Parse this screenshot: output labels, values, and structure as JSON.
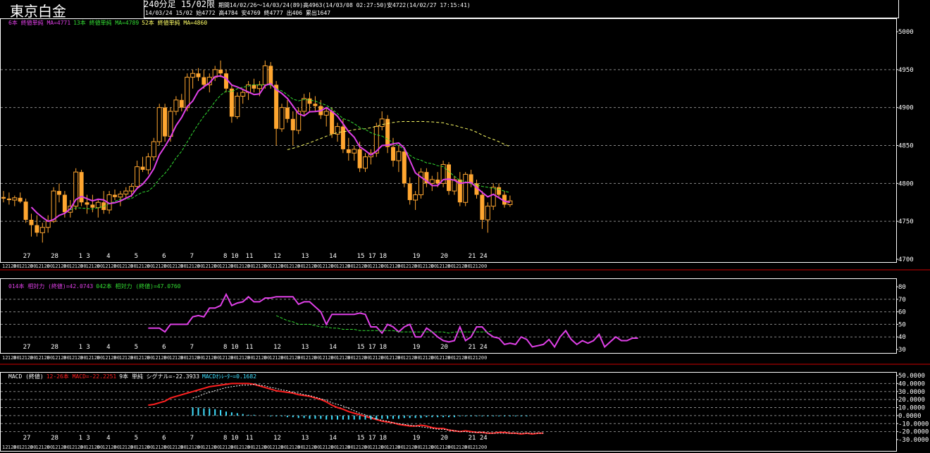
{
  "header": {
    "title": "東京白金",
    "period_label": "240分足 15/02限",
    "period_info": "期間14/02/26～14/03/24(89)高4963(14/03/08 02:27:50)安4722(14/02/27 17:15:41)",
    "latest_bar": "14/03/24 15/02 始4772 高4784 安4769 終4777 出406 累出1647"
  },
  "colors": {
    "background": "#000000",
    "candle_body": "#ffa630",
    "ma6": "#e040e8",
    "ma13": "#33dd33",
    "ma52": "#ffff66",
    "rsi14": "#e040e8",
    "rsi42": "#33dd33",
    "macd": "#ff2020",
    "signal": "#ffffff",
    "histogram": "#40e0ff",
    "separator": "#cc0000"
  },
  "chart_data": [
    {
      "type": "candlestick",
      "title": "240分足 15/02限",
      "legend": [
        {
          "label": "6本 終値単純 MA=4771",
          "color": "#e040e8"
        },
        {
          "label": "13本 終値単純 MA=4789",
          "color": "#33dd33"
        },
        {
          "label": "52本 終値単純 MA=4860",
          "color": "#ffff66"
        }
      ],
      "ylim": [
        4700,
        5000
      ],
      "yticks": [
        4700,
        4750,
        4800,
        4850,
        4900,
        4950,
        5000
      ],
      "grid": true,
      "xlabels": [
        {
          "i": 4,
          "t": "27"
        },
        {
          "i": 9,
          "t": "28"
        },
        {
          "i": 14,
          "t": "1 3"
        },
        {
          "i": 19,
          "t": "4"
        },
        {
          "i": 24,
          "t": "5"
        },
        {
          "i": 29,
          "t": "6"
        },
        {
          "i": 34,
          "t": "7"
        },
        {
          "i": 40,
          "t": "8 10"
        },
        {
          "i": 44,
          "t": "11"
        },
        {
          "i": 49,
          "t": "12"
        },
        {
          "i": 54,
          "t": "13"
        },
        {
          "i": 59,
          "t": "14"
        },
        {
          "i": 64,
          "t": "15 17"
        },
        {
          "i": 68,
          "t": "18"
        },
        {
          "i": 74,
          "t": "19"
        },
        {
          "i": 79,
          "t": "20"
        },
        {
          "i": 84,
          "t": "21 24"
        }
      ],
      "session_labels": [
        "12",
        "1200",
        "8",
        "12",
        "1200",
        "8",
        "12",
        "1200",
        "8",
        "12",
        "1200",
        "8",
        "12",
        "1200",
        "8",
        "12",
        "1200",
        "8",
        "12",
        "1200",
        "8",
        "12",
        "1200",
        "8",
        "12",
        "1200",
        "8",
        "12",
        "1200",
        "8",
        "12",
        "1200",
        "8",
        "12",
        "1200",
        "8",
        "12",
        "1200",
        "8",
        "12",
        "1200",
        "8",
        "12",
        "1200",
        "8",
        "12",
        "1200",
        "8",
        "12",
        "1200",
        "8",
        "12",
        "1200",
        "8",
        "12",
        "1200",
        "8",
        "12",
        "1200",
        "8",
        "12",
        "1200",
        "8",
        "12",
        "1200",
        "8",
        "12",
        "1200",
        "8",
        "12",
        "1200",
        "8",
        "12",
        "1200",
        "8",
        "12",
        "1200",
        "8",
        "12",
        "1200",
        "8",
        "12",
        "1200",
        "8",
        "12",
        "1200"
      ],
      "candles": [
        [
          4782,
          4790,
          4775,
          4780
        ],
        [
          4780,
          4788,
          4772,
          4778
        ],
        [
          4778,
          4784,
          4770,
          4781
        ],
        [
          4781,
          4788,
          4774,
          4776
        ],
        [
          4776,
          4780,
          4748,
          4752
        ],
        [
          4752,
          4760,
          4730,
          4745
        ],
        [
          4745,
          4758,
          4730,
          4735
        ],
        [
          4735,
          4748,
          4722,
          4742
        ],
        [
          4742,
          4758,
          4735,
          4750
        ],
        [
          4750,
          4795,
          4748,
          4790
        ],
        [
          4790,
          4800,
          4775,
          4785
        ],
        [
          4785,
          4790,
          4755,
          4762
        ],
        [
          4762,
          4778,
          4755,
          4770
        ],
        [
          4770,
          4820,
          4765,
          4815
        ],
        [
          4815,
          4818,
          4770,
          4775
        ],
        [
          4775,
          4785,
          4760,
          4772
        ],
        [
          4772,
          4785,
          4762,
          4768
        ],
        [
          4768,
          4778,
          4755,
          4775
        ],
        [
          4775,
          4790,
          4760,
          4765
        ],
        [
          4765,
          4790,
          4760,
          4785
        ],
        [
          4785,
          4792,
          4778,
          4782
        ],
        [
          4782,
          4790,
          4770,
          4786
        ],
        [
          4786,
          4795,
          4780,
          4790
        ],
        [
          4790,
          4800,
          4782,
          4796
        ],
        [
          4796,
          4830,
          4792,
          4822
        ],
        [
          4822,
          4835,
          4815,
          4818
        ],
        [
          4818,
          4840,
          4812,
          4835
        ],
        [
          4835,
          4860,
          4830,
          4855
        ],
        [
          4855,
          4905,
          4850,
          4900
        ],
        [
          4900,
          4905,
          4855,
          4862
        ],
        [
          4862,
          4900,
          4855,
          4895
        ],
        [
          4895,
          4915,
          4890,
          4910
        ],
        [
          4910,
          4918,
          4895,
          4900
        ],
        [
          4900,
          4945,
          4895,
          4940
        ],
        [
          4940,
          4950,
          4925,
          4945
        ],
        [
          4945,
          4952,
          4935,
          4940
        ],
        [
          4940,
          4950,
          4925,
          4930
        ],
        [
          4930,
          4945,
          4920,
          4940
        ],
        [
          4940,
          4955,
          4935,
          4950
        ],
        [
          4950,
          4962,
          4940,
          4945
        ],
        [
          4945,
          4950,
          4920,
          4925
        ],
        [
          4925,
          4930,
          4880,
          4888
        ],
        [
          4888,
          4920,
          4885,
          4915
        ],
        [
          4915,
          4925,
          4905,
          4920
        ],
        [
          4920,
          4935,
          4910,
          4930
        ],
        [
          4930,
          4938,
          4920,
          4925
        ],
        [
          4925,
          4935,
          4915,
          4930
        ],
        [
          4930,
          4962,
          4925,
          4955
        ],
        [
          4955,
          4960,
          4925,
          4930
        ],
        [
          4930,
          4935,
          4850,
          4872
        ],
        [
          4872,
          4905,
          4868,
          4900
        ],
        [
          4900,
          4910,
          4880,
          4885
        ],
        [
          4885,
          4895,
          4850,
          4870
        ],
        [
          4870,
          4900,
          4865,
          4895
        ],
        [
          4895,
          4918,
          4890,
          4912
        ],
        [
          4912,
          4920,
          4895,
          4905
        ],
        [
          4905,
          4915,
          4895,
          4902
        ],
        [
          4902,
          4910,
          4885,
          4890
        ],
        [
          4890,
          4900,
          4875,
          4895
        ],
        [
          4895,
          4900,
          4860,
          4865
        ],
        [
          4865,
          4880,
          4855,
          4875
        ],
        [
          4875,
          4885,
          4840,
          4845
        ],
        [
          4845,
          4860,
          4830,
          4840
        ],
        [
          4840,
          4850,
          4830,
          4845
        ],
        [
          4845,
          4855,
          4815,
          4820
        ],
        [
          4820,
          4840,
          4815,
          4835
        ],
        [
          4835,
          4845,
          4825,
          4840
        ],
        [
          4840,
          4880,
          4835,
          4875
        ],
        [
          4875,
          4895,
          4870,
          4885
        ],
        [
          4885,
          4890,
          4840,
          4848
        ],
        [
          4848,
          4860,
          4822,
          4830
        ],
        [
          4830,
          4850,
          4815,
          4842
        ],
        [
          4842,
          4848,
          4795,
          4800
        ],
        [
          4800,
          4808,
          4772,
          4778
        ],
        [
          4778,
          4790,
          4765,
          4785
        ],
        [
          4785,
          4820,
          4780,
          4815
        ],
        [
          4815,
          4820,
          4795,
          4800
        ],
        [
          4800,
          4810,
          4790,
          4805
        ],
        [
          4805,
          4815,
          4795,
          4800
        ],
        [
          4800,
          4830,
          4795,
          4825
        ],
        [
          4825,
          4828,
          4785,
          4790
        ],
        [
          4790,
          4810,
          4785,
          4805
        ],
        [
          4805,
          4815,
          4770,
          4775
        ],
        [
          4775,
          4815,
          4770,
          4812
        ],
        [
          4812,
          4818,
          4795,
          4800
        ],
        [
          4800,
          4805,
          4780,
          4785
        ],
        [
          4785,
          4790,
          4740,
          4752
        ],
        [
          4752,
          4775,
          4735,
          4770
        ],
        [
          4770,
          4800,
          4765,
          4795
        ],
        [
          4795,
          4800,
          4782,
          4785
        ],
        [
          4785,
          4790,
          4768,
          4772
        ],
        [
          4772,
          4784,
          4769,
          4777
        ]
      ]
    },
    {
      "type": "line",
      "title": "相対力 (終値)",
      "legend": [
        {
          "label": "014本 相対力 (終値)=42.0743",
          "color": "#e040e8"
        },
        {
          "label": "042本 相対力 (終値)=47.0760",
          "color": "#33dd33"
        }
      ],
      "ylim": [
        30,
        80
      ],
      "yticks": [
        30,
        40,
        50,
        60,
        70,
        80
      ],
      "grid": true,
      "series": [
        {
          "name": "014本 相対力 (終値)",
          "start_index": 26,
          "values": [
            47,
            47,
            47,
            44,
            50,
            50,
            50,
            50,
            56,
            57,
            56,
            63,
            63,
            65,
            74,
            65,
            67,
            68,
            72,
            68,
            68,
            71,
            71,
            72,
            72,
            72,
            72,
            66,
            68,
            68,
            64,
            60,
            50,
            58,
            58,
            58,
            58,
            58,
            59,
            58,
            48,
            48,
            43,
            50,
            48,
            44,
            48,
            50,
            40,
            40,
            47,
            44,
            40,
            37,
            36,
            37,
            48,
            37,
            40,
            48,
            48,
            43,
            40,
            39,
            34,
            35,
            34,
            40,
            38,
            32,
            33,
            34,
            38,
            32,
            40,
            45,
            38,
            34,
            37,
            35,
            37,
            42,
            32,
            36,
            40,
            37,
            37,
            39,
            39
          ]
        },
        {
          "name": "042本 相対力 (終値)",
          "start_index": 49,
          "values": [
            57,
            55,
            53,
            52,
            50,
            50,
            50,
            49,
            48,
            48,
            47,
            47,
            46,
            46,
            46,
            45,
            45,
            45,
            45,
            45,
            45,
            45,
            44,
            44,
            44,
            44,
            44,
            44,
            44,
            44,
            44,
            43,
            44,
            44,
            44,
            44,
            44,
            44,
            44,
            45
          ]
        }
      ]
    },
    {
      "type": "line",
      "title": "MACD (終値)",
      "legend": [
        {
          "label": "MACD (終値)",
          "color": "#ffffff"
        },
        {
          "label": "12-26本 MACD=-22.2251",
          "color": "#ff2020"
        },
        {
          "label": "9本 単純 シグナル=-22.3933",
          "color": "#ffffff"
        },
        {
          "label": "MACDｵｼﾚｰﾀｰ=0.1682",
          "color": "#40e0ff"
        }
      ],
      "ylim": [
        -30,
        50
      ],
      "yticks": [
        -30,
        -20,
        -10,
        0,
        10,
        20,
        30,
        40,
        50
      ],
      "ytick_labels": [
        "-30.0000",
        "-20.0000",
        "-10.0000",
        "0.0000",
        "10.0000",
        "20.0000",
        "30.0000",
        "40.0000",
        "50.0000"
      ],
      "grid": true,
      "series": [
        {
          "name": "12-26本 MACD",
          "start_index": 26,
          "values": [
            13,
            14,
            16,
            18,
            22,
            24,
            26,
            28,
            30,
            32,
            34,
            36,
            37,
            38,
            39,
            40,
            40,
            40,
            40,
            39,
            37,
            35,
            33,
            31,
            30,
            29,
            28,
            26,
            25,
            24,
            22,
            20,
            17,
            13,
            10,
            8,
            5,
            3,
            1,
            -1,
            -3,
            -5,
            -7,
            -8,
            -9,
            -11,
            -12,
            -13,
            -13,
            -12,
            -13,
            -15,
            -16,
            -16,
            -18,
            -19,
            -20,
            -19,
            -20,
            -21,
            -21,
            -22,
            -22,
            -21,
            -21,
            -22,
            -22,
            -23,
            -22,
            -23,
            -22,
            -22
          ]
        },
        {
          "name": "9本 単純 シグナル",
          "start_index": 34,
          "values": [
            22,
            24,
            27,
            29,
            31,
            33,
            35,
            36,
            37,
            38,
            38,
            39,
            38,
            37,
            35,
            34,
            32,
            31,
            29,
            28,
            26,
            25,
            23,
            21,
            19,
            16,
            14,
            12,
            9,
            6,
            3,
            1,
            -2,
            -4,
            -6,
            -7,
            -9,
            -10,
            -11,
            -12,
            -13,
            -14,
            -15,
            -16,
            -17,
            -17,
            -18,
            -19,
            -20,
            -20,
            -21,
            -21,
            -21,
            -22,
            -22,
            -22,
            -22,
            -22,
            -22,
            -22,
            -22,
            -22,
            -22,
            -22
          ]
        },
        {
          "name": "MACDｵｼﾚｰﾀｰ",
          "start_index": 34,
          "values": [
            10,
            10,
            9,
            9,
            8,
            7,
            5,
            4,
            3,
            2,
            1,
            1,
            0,
            0,
            -1,
            -1,
            -1,
            -2,
            -2,
            -3,
            -3,
            -4,
            -4,
            -4,
            -5,
            -5,
            -5,
            -5,
            -5,
            -5,
            -5,
            -5,
            -5,
            -5,
            -4,
            -4,
            -4,
            -4,
            -3,
            -3,
            -3,
            -3,
            -2,
            -2,
            -2,
            -2,
            -2,
            -2,
            -1,
            -1,
            -1,
            -1,
            -1,
            -1,
            -1,
            -1,
            -1,
            -1,
            -1,
            -1,
            -1,
            0,
            0,
            0
          ]
        }
      ]
    }
  ]
}
